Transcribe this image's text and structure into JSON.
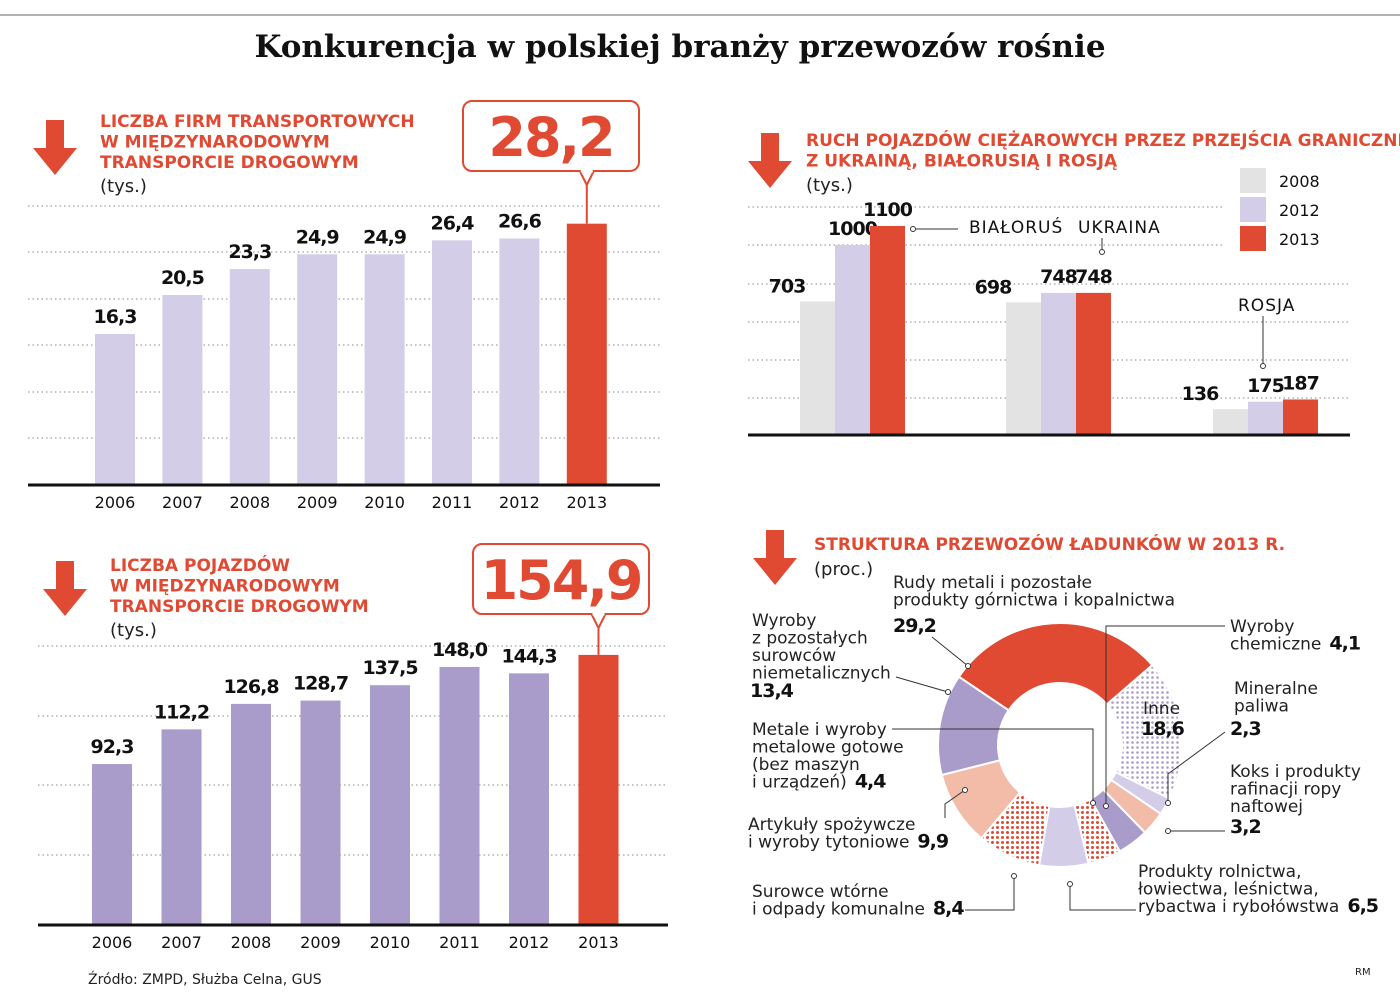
{
  "title": "Konkurencja w polskiej branży przewozów rośnie",
  "source": "Źródło: ZMPD, Służba Celna, GUS",
  "credit": "RM",
  "colors": {
    "red": "#e04a33",
    "lavender": "#d3cde8",
    "gray": "#e3e3e3",
    "purple": "#a99bca",
    "salmon": "#f2bca8",
    "grid": "#888888"
  },
  "chart_data": [
    {
      "type": "bar",
      "title": [
        "LICZBA FIRM TRANSPORTOWYCH",
        "W MIĘDZYNARODOWYM",
        "TRANSPORCIE DROGOWYM"
      ],
      "unit": "(tys.)",
      "categories": [
        "2006",
        "2007",
        "2008",
        "2009",
        "2010",
        "2011",
        "2012",
        "2013"
      ],
      "values": [
        16.3,
        20.5,
        23.3,
        24.9,
        24.9,
        26.4,
        26.6,
        28.2
      ],
      "labels": [
        "16,3",
        "20,5",
        "23,3",
        "24,9",
        "24,9",
        "26,4",
        "26,6",
        "28,2"
      ],
      "highlight": "28,2",
      "ylim": [
        0,
        30
      ],
      "grid": true
    },
    {
      "type": "bar",
      "title": [
        "LICZBA POJAZDÓW",
        "W MIĘDZYNARODOWYM",
        "TRANSPORCIE DROGOWYM"
      ],
      "unit": "(tys.)",
      "categories": [
        "2006",
        "2007",
        "2008",
        "2009",
        "2010",
        "2011",
        "2012",
        "2013"
      ],
      "values": [
        92.3,
        112.2,
        126.8,
        128.7,
        137.5,
        148.0,
        144.3,
        154.9
      ],
      "labels": [
        "92,3",
        "112,2",
        "126,8",
        "128,7",
        "137,5",
        "148,0",
        "144,3",
        "154,9"
      ],
      "highlight": "154,9",
      "ylim": [
        0,
        160
      ],
      "grid": true
    },
    {
      "type": "bar",
      "title": [
        "RUCH POJAZDÓW CIĘŻAROWYCH PRZEZ PRZEJŚCIA GRANICZNE",
        "Z UKRAINĄ, BIAŁORUSIĄ I ROSJĄ"
      ],
      "unit": "(tys.)",
      "categories": [
        "BIAŁORUŚ",
        "UKRAINA",
        "ROSJA"
      ],
      "series": [
        {
          "name": "2008",
          "values": [
            703,
            698,
            136
          ],
          "labels": [
            "703",
            "698",
            "136"
          ]
        },
        {
          "name": "2012",
          "values": [
            1000,
            748,
            175
          ],
          "labels": [
            "1000",
            "748",
            "175"
          ]
        },
        {
          "name": "2013",
          "values": [
            1100,
            748,
            187
          ],
          "labels": [
            "1100",
            "748",
            "187"
          ]
        }
      ],
      "legend": "top-right",
      "ylim": [
        0,
        1150
      ],
      "grid": true
    },
    {
      "type": "pie",
      "title": "STRUKTURA PRZEWOZÓW ŁADUNKÓW W 2013 R.",
      "unit": "(proc.)",
      "slices": [
        {
          "label": [
            "Rudy metali i pozostałe",
            "produkty górnictwa i kopalnictwa"
          ],
          "value": 29.2,
          "text": "29,2",
          "fill": "red"
        },
        {
          "label": [
            "Inne"
          ],
          "value": 18.6,
          "text": "18,6",
          "fill": "purple-dots"
        },
        {
          "label": [
            "Mineralne",
            "paliwa"
          ],
          "value": 2.3,
          "text": "2,3",
          "fill": "lavender"
        },
        {
          "label": [
            "Koks i produkty",
            "rafinacji ropy",
            "naftowej"
          ],
          "value": 3.2,
          "text": "3,2",
          "fill": "salmon"
        },
        {
          "label": [
            "Wyroby",
            "chemiczne"
          ],
          "value": 4.1,
          "text": "4,1",
          "fill": "purple"
        },
        {
          "label": [
            "Metale i wyroby",
            "metalowe gotowe",
            "(bez maszyn",
            "i urządzeń)"
          ],
          "value": 4.4,
          "text": "4,4",
          "fill": "red-dots"
        },
        {
          "label": [
            "Produkty rolnictwa,",
            "łowiectwa, leśnictwa,",
            "rybactwa i rybołówstwa"
          ],
          "value": 6.5,
          "text": "6,5",
          "fill": "lavender"
        },
        {
          "label": [
            "Surowce wtórne",
            "i odpady komunalne"
          ],
          "value": 8.4,
          "text": "8,4",
          "fill": "red-dots"
        },
        {
          "label": [
            "Artykuły spożywcze",
            "i wyroby tytoniowe"
          ],
          "value": 9.9,
          "text": "9,9",
          "fill": "salmon"
        },
        {
          "label": [
            "Wyroby",
            "z pozostałych",
            "surowców",
            "niemetalicznych"
          ],
          "value": 13.4,
          "text": "13,4",
          "fill": "purple"
        }
      ]
    }
  ]
}
